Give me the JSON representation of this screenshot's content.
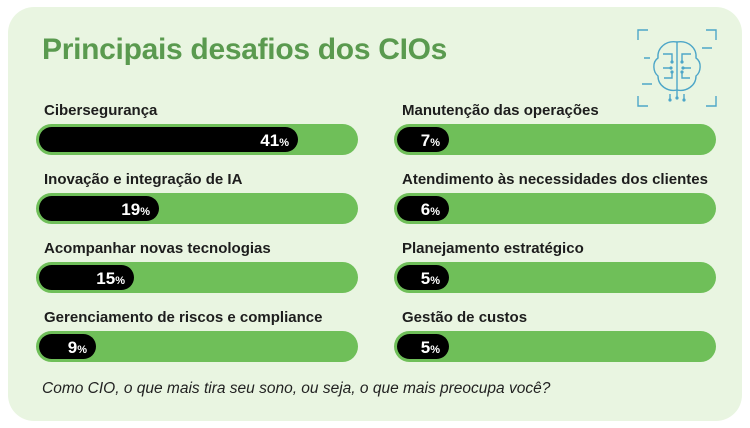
{
  "title": "Principais desafios dos CIOs",
  "footnote": "Como CIO, o que mais tira seu sono, ou seja, o que mais preocupa você?",
  "colors": {
    "background": "#e9f5e1",
    "title": "#5a9a4f",
    "track": "#6fbf59",
    "fill": "#000000",
    "logo": "#4da6c8"
  },
  "logo_icon": "brain-circuit-icon",
  "chart_data": {
    "type": "bar",
    "orientation": "horizontal",
    "title": "Principais desafios dos CIOs",
    "unit": "%",
    "xlim": [
      0,
      50
    ],
    "categories": [
      "Cibersegurança",
      "Inovação e integração de IA",
      "Acompanhar novas tecnologias",
      "Gerenciamento de riscos e compliance",
      "Manutenção das operações",
      "Atendimento às necessidades dos clientes",
      "Planejamento estratégico",
      "Gestão de custos"
    ],
    "values": [
      41,
      19,
      15,
      9,
      7,
      6,
      5,
      5
    ]
  }
}
